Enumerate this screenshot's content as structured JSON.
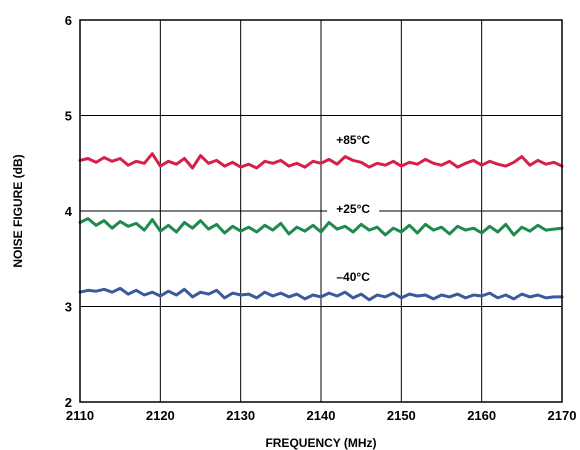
{
  "chart_data": {
    "type": "line",
    "xlabel": "FREQUENCY (MHz)",
    "ylabel": "NOISE FIGURE (dB)",
    "xlim": [
      2110,
      2170
    ],
    "ylim": [
      2,
      6
    ],
    "x_ticks": [
      "2110",
      "2120",
      "2130",
      "2140",
      "2150",
      "2160",
      "2170"
    ],
    "y_ticks": [
      "2",
      "3",
      "4",
      "5",
      "6"
    ],
    "grid": true,
    "legend": "none (labels placed on series)",
    "x": [
      2110,
      2111,
      2112,
      2113,
      2114,
      2115,
      2116,
      2117,
      2118,
      2119,
      2120,
      2121,
      2122,
      2123,
      2124,
      2125,
      2126,
      2127,
      2128,
      2129,
      2130,
      2131,
      2132,
      2133,
      2134,
      2135,
      2136,
      2137,
      2138,
      2139,
      2140,
      2141,
      2142,
      2143,
      2144,
      2145,
      2146,
      2147,
      2148,
      2149,
      2150,
      2151,
      2152,
      2153,
      2154,
      2155,
      2156,
      2157,
      2158,
      2159,
      2160,
      2161,
      2162,
      2163,
      2164,
      2165,
      2166,
      2167,
      2168,
      2169,
      2170
    ],
    "series": [
      {
        "name": "+85°C",
        "color": "#d6204b",
        "values": [
          4.53,
          4.55,
          4.51,
          4.56,
          4.52,
          4.55,
          4.48,
          4.52,
          4.5,
          4.6,
          4.47,
          4.52,
          4.49,
          4.55,
          4.45,
          4.58,
          4.5,
          4.53,
          4.47,
          4.51,
          4.46,
          4.49,
          4.45,
          4.52,
          4.5,
          4.53,
          4.47,
          4.5,
          4.46,
          4.52,
          4.5,
          4.54,
          4.49,
          4.57,
          4.53,
          4.51,
          4.46,
          4.5,
          4.48,
          4.52,
          4.47,
          4.51,
          4.49,
          4.54,
          4.5,
          4.48,
          4.52,
          4.46,
          4.5,
          4.53,
          4.48,
          4.52,
          4.49,
          4.47,
          4.51,
          4.57,
          4.48,
          4.53,
          4.49,
          4.51,
          4.47
        ]
      },
      {
        "name": "+25°C",
        "color": "#1f8a4c",
        "values": [
          3.88,
          3.92,
          3.85,
          3.9,
          3.82,
          3.89,
          3.84,
          3.87,
          3.8,
          3.91,
          3.79,
          3.85,
          3.78,
          3.88,
          3.82,
          3.9,
          3.81,
          3.86,
          3.77,
          3.84,
          3.79,
          3.83,
          3.78,
          3.85,
          3.8,
          3.87,
          3.76,
          3.83,
          3.79,
          3.85,
          3.78,
          3.88,
          3.81,
          3.84,
          3.78,
          3.86,
          3.8,
          3.83,
          3.75,
          3.82,
          3.78,
          3.85,
          3.77,
          3.86,
          3.8,
          3.83,
          3.76,
          3.84,
          3.8,
          3.82,
          3.77,
          3.84,
          3.78,
          3.86,
          3.75,
          3.83,
          3.79,
          3.85,
          3.8,
          3.81,
          3.82
        ]
      },
      {
        "name": "–40°C",
        "color": "#3a5a9c",
        "values": [
          3.15,
          3.17,
          3.16,
          3.18,
          3.15,
          3.19,
          3.13,
          3.17,
          3.12,
          3.15,
          3.11,
          3.16,
          3.12,
          3.18,
          3.1,
          3.15,
          3.13,
          3.17,
          3.09,
          3.14,
          3.12,
          3.13,
          3.09,
          3.15,
          3.11,
          3.14,
          3.1,
          3.13,
          3.08,
          3.12,
          3.1,
          3.14,
          3.11,
          3.15,
          3.09,
          3.13,
          3.07,
          3.12,
          3.1,
          3.14,
          3.09,
          3.13,
          3.11,
          3.12,
          3.08,
          3.12,
          3.1,
          3.13,
          3.09,
          3.12,
          3.11,
          3.14,
          3.09,
          3.12,
          3.08,
          3.13,
          3.1,
          3.12,
          3.09,
          3.1,
          3.1
        ]
      }
    ],
    "annotations": [
      "+85°C",
      "+25°C",
      "–40°C"
    ]
  }
}
